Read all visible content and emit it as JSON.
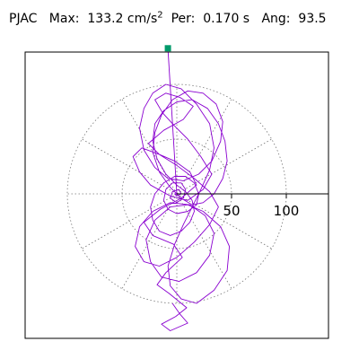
{
  "header": {
    "station": "PJAC",
    "max_label": "Max:",
    "max_value": "133.2",
    "max_unit": "cm/s",
    "max_unit_exp": "2",
    "per_label": "Per:",
    "per_value": "0.170 s",
    "ang_label": "Ang:",
    "ang_value": "93.5"
  },
  "chart_data": {
    "type": "polar-hodogram",
    "title": "",
    "r_ticks": [
      50,
      100
    ],
    "r_tick_labels": [
      "50",
      "100"
    ],
    "grid_rings": [
      50,
      100
    ],
    "grid_spokes_deg": [
      0,
      30,
      60,
      90,
      120,
      150,
      180,
      210,
      240,
      270,
      300,
      330
    ],
    "grid": true,
    "trace_color": "#8a00d0",
    "marker_color": "#009a6a",
    "max_amplitude": 133.2,
    "max_angle_deg": 93.5,
    "trace": [
      [
        -4,
        -100
      ],
      [
        3,
        -110
      ],
      [
        10,
        -118
      ],
      [
        -6,
        -125
      ],
      [
        -14,
        -119
      ],
      [
        -1,
        -112
      ],
      [
        9,
        -104
      ],
      [
        -7,
        -91
      ],
      [
        -18,
        -83
      ],
      [
        -10,
        -72
      ],
      [
        5,
        -58
      ],
      [
        -3,
        -46
      ],
      [
        -22,
        -38
      ],
      [
        -30,
        -26
      ],
      [
        -15,
        -14
      ],
      [
        4,
        -4
      ],
      [
        18,
        8
      ],
      [
        12,
        20
      ],
      [
        -2,
        30
      ],
      [
        -16,
        36
      ],
      [
        -26,
        46
      ],
      [
        -12,
        58
      ],
      [
        6,
        68
      ],
      [
        15,
        80
      ],
      [
        3,
        88
      ],
      [
        -10,
        92
      ],
      [
        -20,
        86
      ],
      [
        -13,
        74
      ],
      [
        -2,
        62
      ],
      [
        10,
        50
      ],
      [
        22,
        34
      ],
      [
        32,
        18
      ],
      [
        24,
        4
      ],
      [
        10,
        -6
      ],
      [
        -6,
        -2
      ],
      [
        -24,
        8
      ],
      [
        -34,
        20
      ],
      [
        -40,
        34
      ],
      [
        -32,
        42
      ],
      [
        -16,
        36
      ],
      [
        0,
        26
      ],
      [
        16,
        14
      ],
      [
        30,
        2
      ],
      [
        38,
        -12
      ],
      [
        30,
        -28
      ],
      [
        16,
        -44
      ],
      [
        0,
        -58
      ],
      [
        -16,
        -66
      ],
      [
        -30,
        -62
      ],
      [
        -38,
        -48
      ],
      [
        -34,
        -30
      ],
      [
        -22,
        -16
      ],
      [
        -6,
        -8
      ],
      [
        12,
        -10
      ],
      [
        26,
        -20
      ],
      [
        34,
        -36
      ],
      [
        30,
        -56
      ],
      [
        18,
        -72
      ],
      [
        2,
        -80
      ],
      [
        -14,
        -76
      ],
      [
        -24,
        -62
      ],
      [
        -28,
        -42
      ],
      [
        -20,
        -24
      ],
      [
        -6,
        -12
      ],
      [
        10,
        -10
      ],
      [
        24,
        -16
      ],
      [
        40,
        -30
      ],
      [
        48,
        -48
      ],
      [
        46,
        -70
      ],
      [
        34,
        -88
      ],
      [
        18,
        -100
      ],
      [
        4,
        -96
      ],
      [
        -6,
        -84
      ],
      [
        -8,
        -66
      ],
      [
        -2,
        -46
      ],
      [
        6,
        -28
      ],
      [
        14,
        -12
      ],
      [
        22,
        4
      ],
      [
        30,
        22
      ],
      [
        34,
        42
      ],
      [
        30,
        64
      ],
      [
        18,
        82
      ],
      [
        4,
        96
      ],
      [
        -10,
        100
      ],
      [
        -22,
        92
      ],
      [
        -30,
        78
      ],
      [
        -34,
        60
      ],
      [
        -30,
        40
      ],
      [
        -20,
        24
      ],
      [
        -8,
        14
      ],
      [
        6,
        12
      ],
      [
        20,
        18
      ],
      [
        32,
        30
      ],
      [
        40,
        48
      ],
      [
        42,
        66
      ],
      [
        36,
        82
      ],
      [
        24,
        92
      ],
      [
        10,
        94
      ],
      [
        -4,
        86
      ],
      [
        -14,
        72
      ],
      [
        -20,
        56
      ],
      [
        -22,
        38
      ],
      [
        -16,
        20
      ],
      [
        -6,
        6
      ],
      [
        4,
        -4
      ],
      [
        14,
        -10
      ],
      [
        24,
        -8
      ],
      [
        34,
        0
      ],
      [
        42,
        14
      ],
      [
        46,
        30
      ],
      [
        44,
        48
      ],
      [
        38,
        64
      ],
      [
        28,
        78
      ],
      [
        14,
        86
      ],
      [
        0,
        84
      ],
      [
        -12,
        76
      ],
      [
        -20,
        64
      ],
      [
        -22,
        48
      ],
      [
        -18,
        32
      ],
      [
        -10,
        18
      ],
      [
        0,
        8
      ],
      [
        8,
        2
      ],
      [
        14,
        -6
      ],
      [
        16,
        -16
      ],
      [
        12,
        -26
      ],
      [
        4,
        -34
      ],
      [
        -6,
        -38
      ],
      [
        -16,
        -34
      ],
      [
        -22,
        -24
      ],
      [
        -24,
        -12
      ],
      [
        -20,
        0
      ],
      [
        -12,
        10
      ],
      [
        -2,
        16
      ],
      [
        8,
        16
      ],
      [
        16,
        10
      ],
      [
        20,
        0
      ],
      [
        18,
        -10
      ],
      [
        10,
        -16
      ],
      [
        0,
        -18
      ],
      [
        -8,
        -14
      ],
      [
        -12,
        -6
      ],
      [
        -10,
        4
      ],
      [
        -4,
        10
      ],
      [
        4,
        10
      ],
      [
        8,
        4
      ],
      [
        6,
        -4
      ],
      [
        0,
        -8
      ],
      [
        -6,
        -4
      ],
      [
        -4,
        2
      ],
      [
        2,
        4
      ],
      [
        4,
        0
      ],
      [
        0,
        -2
      ],
      [
        -2,
        0
      ],
      [
        0,
        0
      ]
    ]
  }
}
